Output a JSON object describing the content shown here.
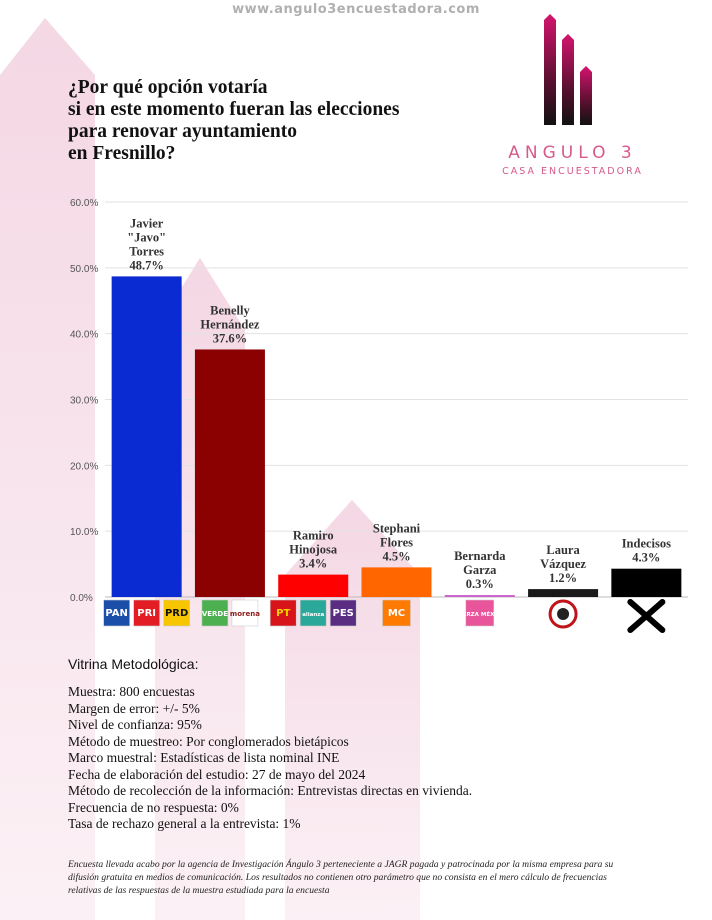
{
  "site": "www.angulo3encuestadora.com",
  "title_lines": [
    "¿Por qué opción votaría",
    "si en este momento fueran las elecciones",
    "para renovar ayuntamiento",
    "en Fresnillo?"
  ],
  "logo": {
    "name": "ANGULO 3",
    "tagline": "CASA ENCUESTADORA"
  },
  "colors": {
    "accent_pink": "#d65a8a",
    "arrow_pink": "#f9e6ee"
  },
  "chart_data": {
    "type": "bar",
    "yticks": [
      "60.0%",
      "50.0%",
      "40.0%",
      "30.0%",
      "20.0%",
      "10.0%",
      "0.0%"
    ],
    "ylim": [
      0,
      60
    ],
    "grid": true,
    "categories": [
      {
        "label_lines": [
          "Javier",
          "\"Javo\"",
          "Torres"
        ],
        "value": 48.7,
        "value_label": "48.7%",
        "color": "#0a2bd1",
        "parties": [
          {
            "text": "PAN",
            "icon": "pan-logo",
            "bg": "#1a4ea8",
            "fg": "#ffffff"
          },
          {
            "text": "PRI",
            "icon": "pri-logo",
            "bg": "#e31d24",
            "fg": "#ffffff"
          },
          {
            "text": "PRD",
            "icon": "prd-logo",
            "bg": "#f7c600",
            "fg": "#111111"
          }
        ]
      },
      {
        "label_lines": [
          "Benelly",
          "Hernández"
        ],
        "value": 37.6,
        "value_label": "37.6%",
        "color": "#8b0000",
        "parties": [
          {
            "text": "VERDE",
            "icon": "verde-logo",
            "bg": "#4caf50",
            "fg": "#ffffff"
          },
          {
            "text": "morena",
            "icon": "morena-logo",
            "bg": "#ffffff",
            "fg": "#8b1c1c"
          }
        ]
      },
      {
        "label_lines": [
          "Ramiro",
          "Hinojosa"
        ],
        "value": 3.4,
        "value_label": "3.4%",
        "color": "#ff0000",
        "parties": [
          {
            "text": "PT",
            "icon": "pt-logo",
            "bg": "#d7141a",
            "fg": "#f7d300"
          },
          {
            "text": "alianza",
            "icon": "alianza-logo",
            "bg": "#2aa89a",
            "fg": "#ffffff"
          },
          {
            "text": "PES",
            "icon": "pes-logo",
            "bg": "#5a2d82",
            "fg": "#ffffff"
          }
        ]
      },
      {
        "label_lines": [
          "Stephani",
          "Flores"
        ],
        "value": 4.5,
        "value_label": "4.5%",
        "color": "#ff6600",
        "parties": [
          {
            "text": "MC",
            "icon": "movimiento-ciudadano-logo",
            "bg": "#ff7a00",
            "fg": "#ffffff"
          }
        ]
      },
      {
        "label_lines": [
          "Bernarda",
          "Garza"
        ],
        "value": 0.3,
        "value_label": "0.3%",
        "color": "#cc66cc",
        "parties": [
          {
            "text": "FUERZA MÉXICO",
            "icon": "fuerza-mexico-logo",
            "bg": "#e8559a",
            "fg": "#ffffff"
          }
        ]
      },
      {
        "label_lines": [
          "Laura",
          "Vázquez"
        ],
        "value": 1.2,
        "value_label": "1.2%",
        "color": "#1a1a1a",
        "parties": [
          {
            "text": "",
            "icon": "independiente-seal-logo",
            "bg": "#ffffff",
            "fg": "#c0141a"
          }
        ]
      },
      {
        "label_lines": [
          "Indecisos"
        ],
        "value": 4.3,
        "value_label": "4.3%",
        "color": "#000000",
        "parties": [
          {
            "text": "",
            "icon": "cross-mark-icon",
            "bg": "none",
            "fg": "#000000"
          }
        ]
      }
    ]
  },
  "methodology": {
    "title": "Vitrina Metodológica:",
    "lines": [
      "Muestra: 800 encuestas",
      "Margen de error: +/- 5%",
      "Nivel de confianza: 95%",
      "Método de muestreo: Por conglomerados bietápicos",
      "Marco muestral: Estadísticas de lista nominal INE",
      "Fecha de elaboración del estudio: 27 de mayo del 2024",
      "Método de recolección de la información: Entrevistas directas en vivienda.",
      "Frecuencia de no respuesta: 0%",
      "Tasa de rechazo general a la entrevista: 1%"
    ]
  },
  "footnote": "Encuesta llevada acabo por la agencia de Investigación Ángulo 3 perteneciente a JAGR pagada y patrocinada por la misma empresa para su difusión gratuita en medios de comunicación. Los resultados no contienen otro parámetro que no consista en el mero cálculo de frecuencias relativas de las respuestas de la muestra estudiada para la encuesta"
}
